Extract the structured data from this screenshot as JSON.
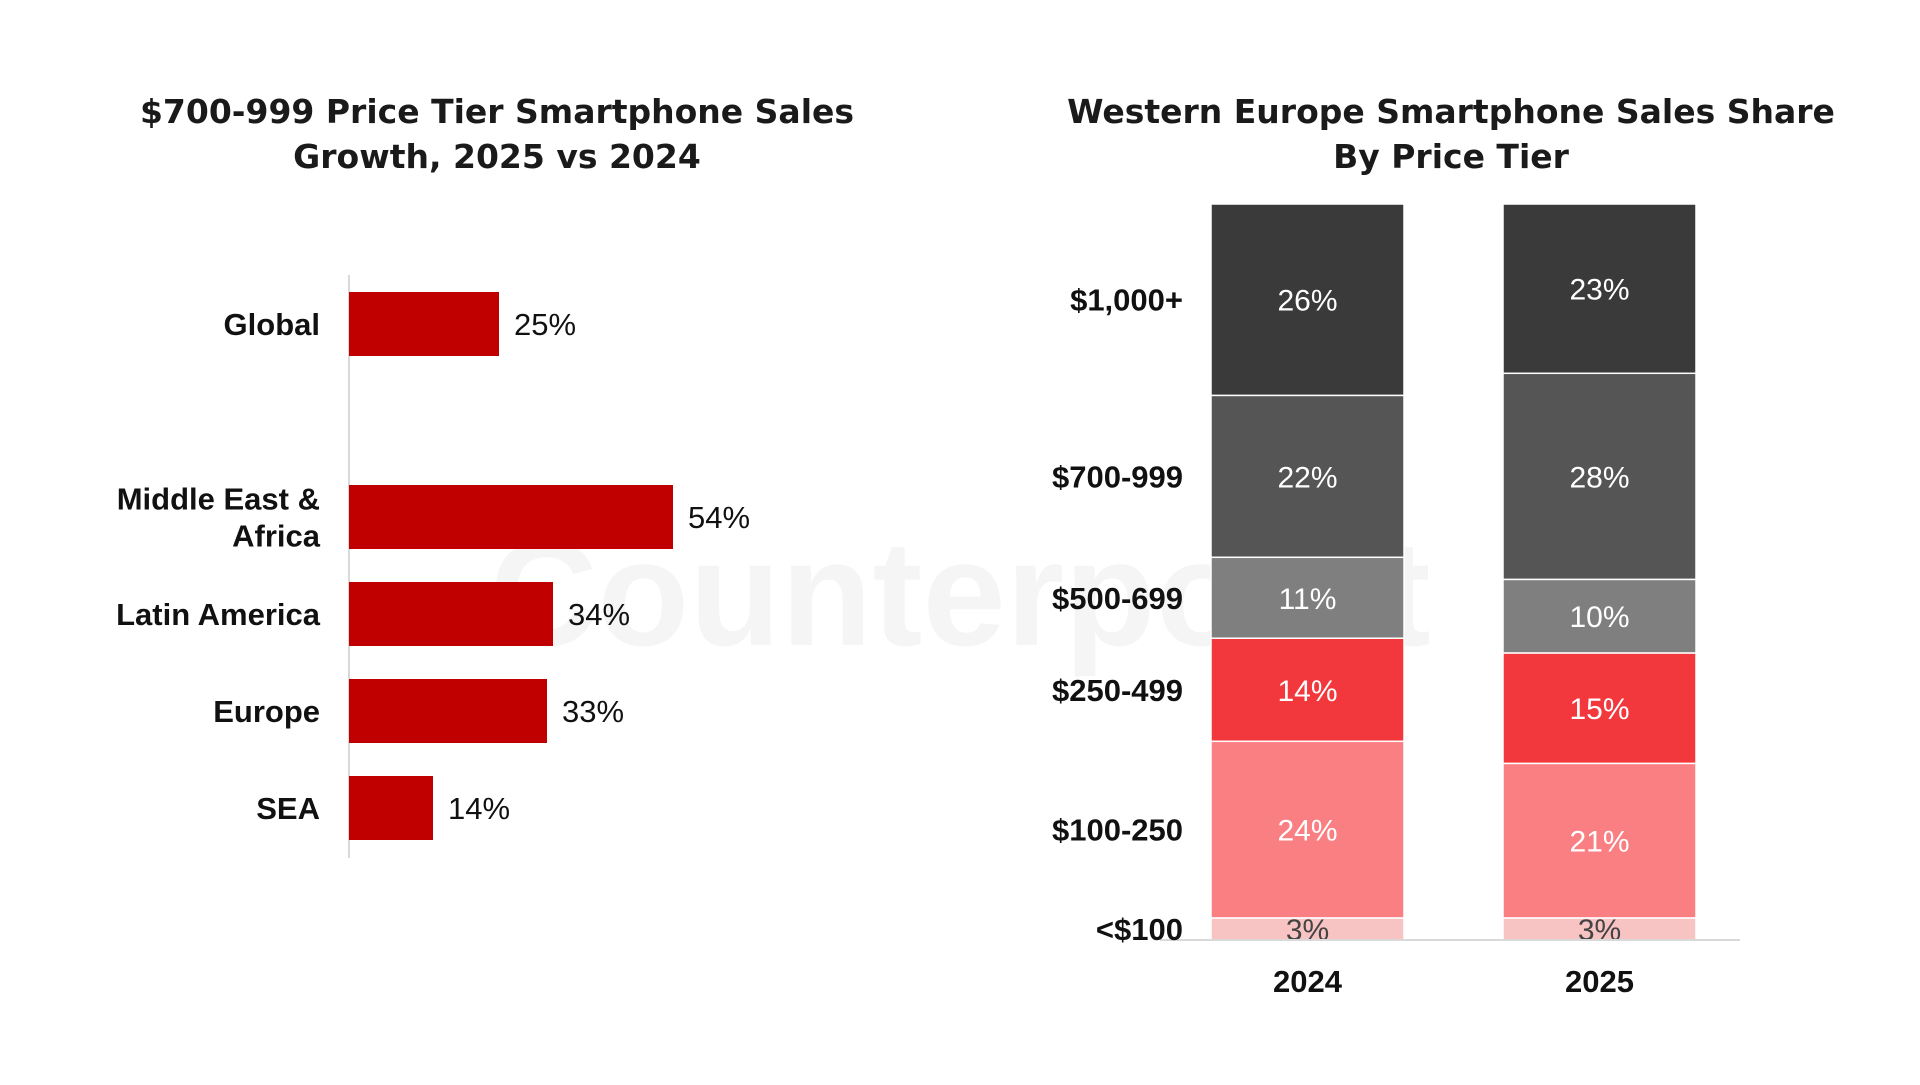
{
  "watermark": {
    "text": "Counterpoint"
  },
  "chart_data": [
    {
      "type": "bar",
      "orientation": "horizontal",
      "title": [
        "$700-999 Price Tier Smartphone Sales",
        "Growth, 2025 vs 2024"
      ],
      "categories": [
        [
          "Global"
        ],
        [
          "Middle East &",
          "Africa"
        ],
        [
          "Latin America"
        ],
        [
          "Europe"
        ],
        [
          "SEA"
        ]
      ],
      "values": [
        25,
        54,
        34,
        33,
        14
      ],
      "value_labels": [
        "25%",
        "54%",
        "34%",
        "33%",
        "14%"
      ],
      "xlim": [
        0,
        100
      ],
      "bar_color": "#c00000",
      "grid": false
    },
    {
      "type": "bar",
      "stacked": true,
      "title": [
        "Western Europe Smartphone Sales Share",
        "By Price Tier"
      ],
      "categories": [
        "2024",
        "2025"
      ],
      "ylim": [
        0,
        100
      ],
      "tier_labels": [
        "$1,000+",
        "$700-999",
        "$500-699",
        "$250-499",
        "$100-250",
        "<$100"
      ],
      "series": [
        {
          "name": "<$100",
          "values": [
            3,
            3
          ],
          "labels": [
            "3%",
            "3%"
          ],
          "color": "#f8c3c3",
          "text_color": "#444444"
        },
        {
          "name": "$100-250",
          "values": [
            24,
            21
          ],
          "labels": [
            "24%",
            "21%"
          ],
          "color": "#f97f83",
          "text_color": "#ffffff"
        },
        {
          "name": "$250-499",
          "values": [
            14,
            15
          ],
          "labels": [
            "14%",
            "15%"
          ],
          "color": "#f2383c",
          "text_color": "#ffffff"
        },
        {
          "name": "$500-699",
          "values": [
            11,
            10
          ],
          "labels": [
            "11%",
            "10%"
          ],
          "color": "#7f7f7f",
          "text_color": "#ffffff"
        },
        {
          "name": "$700-999",
          "values": [
            22,
            28
          ],
          "labels": [
            "22%",
            "28%"
          ],
          "color": "#555555",
          "text_color": "#ffffff"
        },
        {
          "name": "$1,000+",
          "values": [
            26,
            23
          ],
          "labels": [
            "26%",
            "23%"
          ],
          "color": "#3a3a3a",
          "text_color": "#ffffff"
        }
      ],
      "grid": false
    }
  ]
}
